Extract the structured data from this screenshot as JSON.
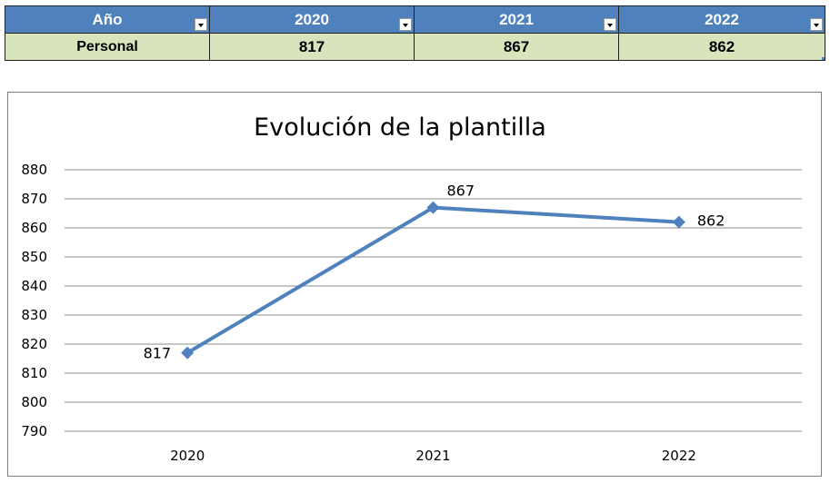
{
  "table": {
    "headers": [
      "Año",
      "2020",
      "2021",
      "2022"
    ],
    "row_label": "Personal",
    "values": [
      "817",
      "867",
      "862"
    ]
  },
  "colors": {
    "header_bg": "#4f81bd",
    "row_bg": "#d8e4bc",
    "series_line": "#4f81bd"
  },
  "chart_data": {
    "type": "line",
    "title": "Evolución de la plantilla",
    "categories": [
      "2020",
      "2021",
      "2022"
    ],
    "series": [
      {
        "values": [
          817,
          867,
          862
        ],
        "marker": "diamond"
      }
    ],
    "data_labels": [
      "817",
      "867",
      "862"
    ],
    "ylim": [
      790,
      880
    ],
    "yticks": [
      880,
      870,
      860,
      850,
      840,
      830,
      820,
      810,
      800,
      790
    ],
    "grid": true,
    "legend": "none",
    "xlabel": "",
    "ylabel": ""
  }
}
